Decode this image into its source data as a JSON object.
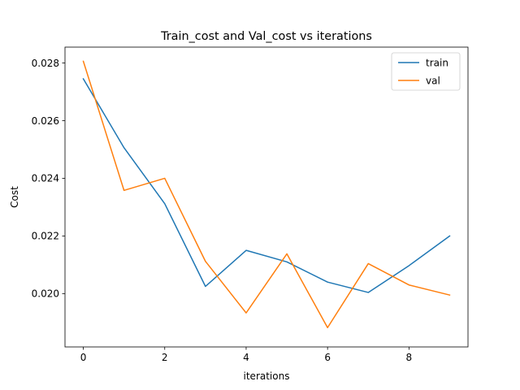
{
  "chart_data": {
    "type": "line",
    "title": "Train_cost and Val_cost vs iterations",
    "xlabel": "iterations",
    "ylabel": "Cost",
    "xlim": [
      -0.45,
      9.45
    ],
    "ylim": [
      0.01815,
      0.02855
    ],
    "xticks": [
      0,
      2,
      4,
      6,
      8
    ],
    "yticks": [
      0.02,
      0.022,
      0.024,
      0.026,
      0.028
    ],
    "ytick_labels": [
      "0.020",
      "0.022",
      "0.024",
      "0.026",
      "0.028"
    ],
    "grid": false,
    "legend_position": "upper right",
    "x": [
      0,
      1,
      2,
      3,
      4,
      5,
      6,
      7,
      8,
      9
    ],
    "series": [
      {
        "name": "train",
        "color": "#1f77b4",
        "values": [
          0.02745,
          0.02506,
          0.02312,
          0.02025,
          0.0215,
          0.0211,
          0.0204,
          0.02004,
          0.02097,
          0.022
        ]
      },
      {
        "name": "val",
        "color": "#ff7f0e",
        "values": [
          0.02806,
          0.02358,
          0.024,
          0.02112,
          0.01933,
          0.02138,
          0.01882,
          0.02104,
          0.0203,
          0.01995
        ]
      }
    ]
  }
}
